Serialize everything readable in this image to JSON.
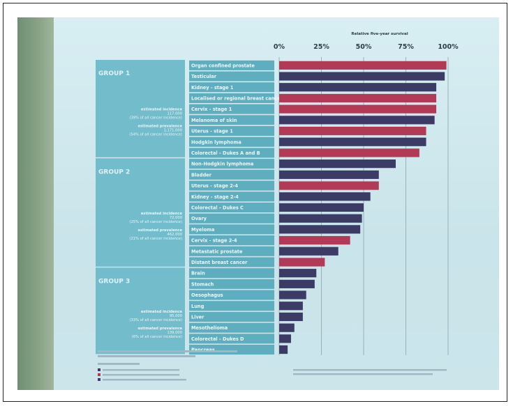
{
  "chart_data": {
    "type": "bar",
    "orientation": "horizontal",
    "title": "Relative five-year survival",
    "xlim": [
      0,
      100
    ],
    "x_ticks": [
      "0%",
      "25%",
      "50%",
      "75%",
      "100%"
    ],
    "categories": [
      "Organ confined prostate",
      "Testicular",
      "Kidney - stage 1",
      "Localised or regional breast cancer",
      "Cervix - stage 1",
      "Melanoma of skin",
      "Uterus - stage 1",
      "Hodgkin lymphoma",
      "Colorectal - Dukes A and B",
      "Non-Hodgkin lymphoma",
      "Bladder",
      "Uterus - stage 2-4",
      "Kidney - stage 2-4",
      "Colorectal - Dukes C",
      "Ovary",
      "Myeloma",
      "Cervix - stage 2-4",
      "Metastatic prostate",
      "Distant breast cancer",
      "Brain",
      "Stomach",
      "Oesophagus",
      "Lung",
      "Liver",
      "Mesothelioma",
      "Colorectal - Dukes D",
      "Pancreas"
    ],
    "values": [
      99,
      98,
      93,
      93,
      93,
      92,
      87,
      87,
      83,
      69,
      59,
      59,
      54,
      50,
      49,
      48,
      42,
      35,
      27,
      22,
      21,
      16,
      14,
      14,
      9,
      7,
      5
    ],
    "bar_colors": [
      "#b23a56",
      "#3c3b66",
      "#3c3b66",
      "#b23a56",
      "#b23a56",
      "#3c3b66",
      "#b23a56",
      "#3c3b66",
      "#b23a56",
      "#3c3b66",
      "#3c3b66",
      "#b23a56",
      "#3c3b66",
      "#3c3b66",
      "#3c3b66",
      "#3c3b66",
      "#b23a56",
      "#3c3b66",
      "#b23a56",
      "#3c3b66",
      "#3c3b66",
      "#3c3b66",
      "#3c3b66",
      "#3c3b66",
      "#3c3b66",
      "#3c3b66",
      "#3c3b66"
    ],
    "groups": [
      {
        "label": "GROUP 1",
        "incidence_label": "estimated incidence",
        "incidence_value": "117,000",
        "incidence_note": "(39% of all cancer incidence)",
        "prevalence_label": "estimated prevalence",
        "prevalence_value": "1,171,000",
        "prevalence_note": "(54% of all cancer incidence)"
      },
      {
        "label": "GROUP 2",
        "incidence_label": "estimated incidence",
        "incidence_value": "72,000",
        "incidence_note": "(25% of all cancer incidence)",
        "prevalence_label": "estimated prevalence",
        "prevalence_value": "462,000",
        "prevalence_note": "(21% of all cancer incidence)"
      },
      {
        "label": "GROUP 3",
        "incidence_label": "estimated incidence",
        "incidence_value": "95,000",
        "incidence_note": "(33% of all cancer incidence)",
        "prevalence_label": "estimated prevalence",
        "prevalence_value": "139,000",
        "prevalence_note": "(6% of all cancer incidence)"
      }
    ]
  },
  "colors": {
    "navy": "#3c3b66",
    "crimson": "#b23a56",
    "label_bg": "#5faec0",
    "group_bg": "#73bccc"
  }
}
